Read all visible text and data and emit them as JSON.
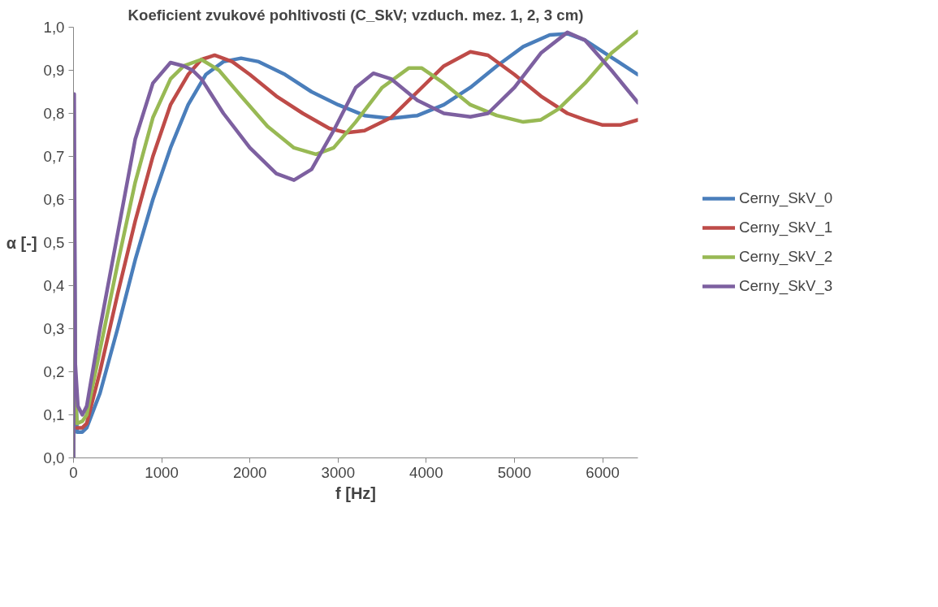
{
  "chart_data": {
    "type": "line",
    "title": "Koeficient zvukové pohltivosti (C_SkV; vzduch. mez. 1, 2, 3 cm)",
    "xlabel": "f [Hz]",
    "ylabel": "α [-]",
    "xlim": [
      0,
      6400
    ],
    "xticks": [
      0,
      1000,
      2000,
      3000,
      4000,
      5000,
      6000
    ],
    "ylim": [
      0,
      1
    ],
    "yticks": [
      {
        "value": 0,
        "label": "0,0"
      },
      {
        "value": 0.1,
        "label": "0,1"
      },
      {
        "value": 0.2,
        "label": "0,2"
      },
      {
        "value": 0.3,
        "label": "0,3"
      },
      {
        "value": 0.4,
        "label": "0,4"
      },
      {
        "value": 0.5,
        "label": "0,5"
      },
      {
        "value": 0.6,
        "label": "0,6"
      },
      {
        "value": 0.7,
        "label": "0,7"
      },
      {
        "value": 0.8,
        "label": "0,8"
      },
      {
        "value": 0.9,
        "label": "0,9"
      },
      {
        "value": 1,
        "label": "1,0"
      }
    ],
    "grid": false,
    "legend": "right",
    "marker": "none",
    "line_style": "solid",
    "series": [
      {
        "name": "Cerny_SkV_0",
        "color": "#4a7ebb",
        "x": [
          0,
          8,
          20,
          40,
          100,
          150,
          300,
          500,
          700,
          900,
          1100,
          1300,
          1500,
          1700,
          1900,
          2100,
          2400,
          2700,
          3000,
          3300,
          3600,
          3900,
          4200,
          4500,
          4800,
          5100,
          5400,
          5600,
          5800,
          6100,
          6400
        ],
        "values": [
          0,
          0.65,
          0.2,
          0.06,
          0.06,
          0.07,
          0.15,
          0.3,
          0.46,
          0.6,
          0.72,
          0.82,
          0.89,
          0.92,
          0.928,
          0.92,
          0.89,
          0.85,
          0.82,
          0.795,
          0.788,
          0.795,
          0.82,
          0.86,
          0.91,
          0.955,
          0.982,
          0.985,
          0.97,
          0.93,
          0.89
        ]
      },
      {
        "name": "Cerny_SkV_1",
        "color": "#be4b48",
        "x": [
          40,
          100,
          150,
          300,
          500,
          700,
          900,
          1100,
          1300,
          1450,
          1600,
          1800,
          2000,
          2300,
          2600,
          2900,
          3100,
          3300,
          3600,
          3900,
          4200,
          4500,
          4700,
          5000,
          5300,
          5600,
          5800,
          6000,
          6200,
          6400
        ],
        "values": [
          0.07,
          0.07,
          0.08,
          0.2,
          0.38,
          0.55,
          0.7,
          0.82,
          0.89,
          0.925,
          0.935,
          0.92,
          0.89,
          0.84,
          0.8,
          0.765,
          0.755,
          0.76,
          0.79,
          0.85,
          0.91,
          0.943,
          0.935,
          0.89,
          0.84,
          0.8,
          0.785,
          0.773,
          0.773,
          0.785
        ]
      },
      {
        "name": "Cerny_SkV_2",
        "color": "#98b954",
        "x": [
          0,
          8,
          20,
          40,
          100,
          150,
          300,
          500,
          700,
          900,
          1100,
          1250,
          1450,
          1650,
          1900,
          2200,
          2500,
          2750,
          2950,
          3200,
          3500,
          3800,
          3950,
          4200,
          4500,
          4800,
          5100,
          5300,
          5500,
          5800,
          6100,
          6400
        ],
        "values": [
          0,
          0.55,
          0.15,
          0.08,
          0.085,
          0.1,
          0.25,
          0.45,
          0.64,
          0.79,
          0.88,
          0.91,
          0.925,
          0.9,
          0.84,
          0.77,
          0.72,
          0.705,
          0.72,
          0.78,
          0.86,
          0.905,
          0.905,
          0.87,
          0.82,
          0.795,
          0.78,
          0.785,
          0.81,
          0.87,
          0.94,
          0.99
        ]
      },
      {
        "name": "Cerny_SkV_3",
        "color": "#7d60a0",
        "x": [
          0,
          8,
          20,
          50,
          100,
          150,
          300,
          500,
          700,
          900,
          1100,
          1250,
          1350,
          1450,
          1700,
          2000,
          2300,
          2500,
          2700,
          2950,
          3200,
          3400,
          3600,
          3900,
          4200,
          4500,
          4700,
          5000,
          5300,
          5600,
          5800,
          6100,
          6400
        ],
        "values": [
          0,
          0.845,
          0.22,
          0.12,
          0.1,
          0.12,
          0.3,
          0.52,
          0.74,
          0.87,
          0.918,
          0.91,
          0.9,
          0.88,
          0.8,
          0.72,
          0.66,
          0.645,
          0.67,
          0.76,
          0.86,
          0.893,
          0.88,
          0.83,
          0.8,
          0.792,
          0.8,
          0.86,
          0.94,
          0.988,
          0.97,
          0.9,
          0.825
        ]
      }
    ]
  }
}
